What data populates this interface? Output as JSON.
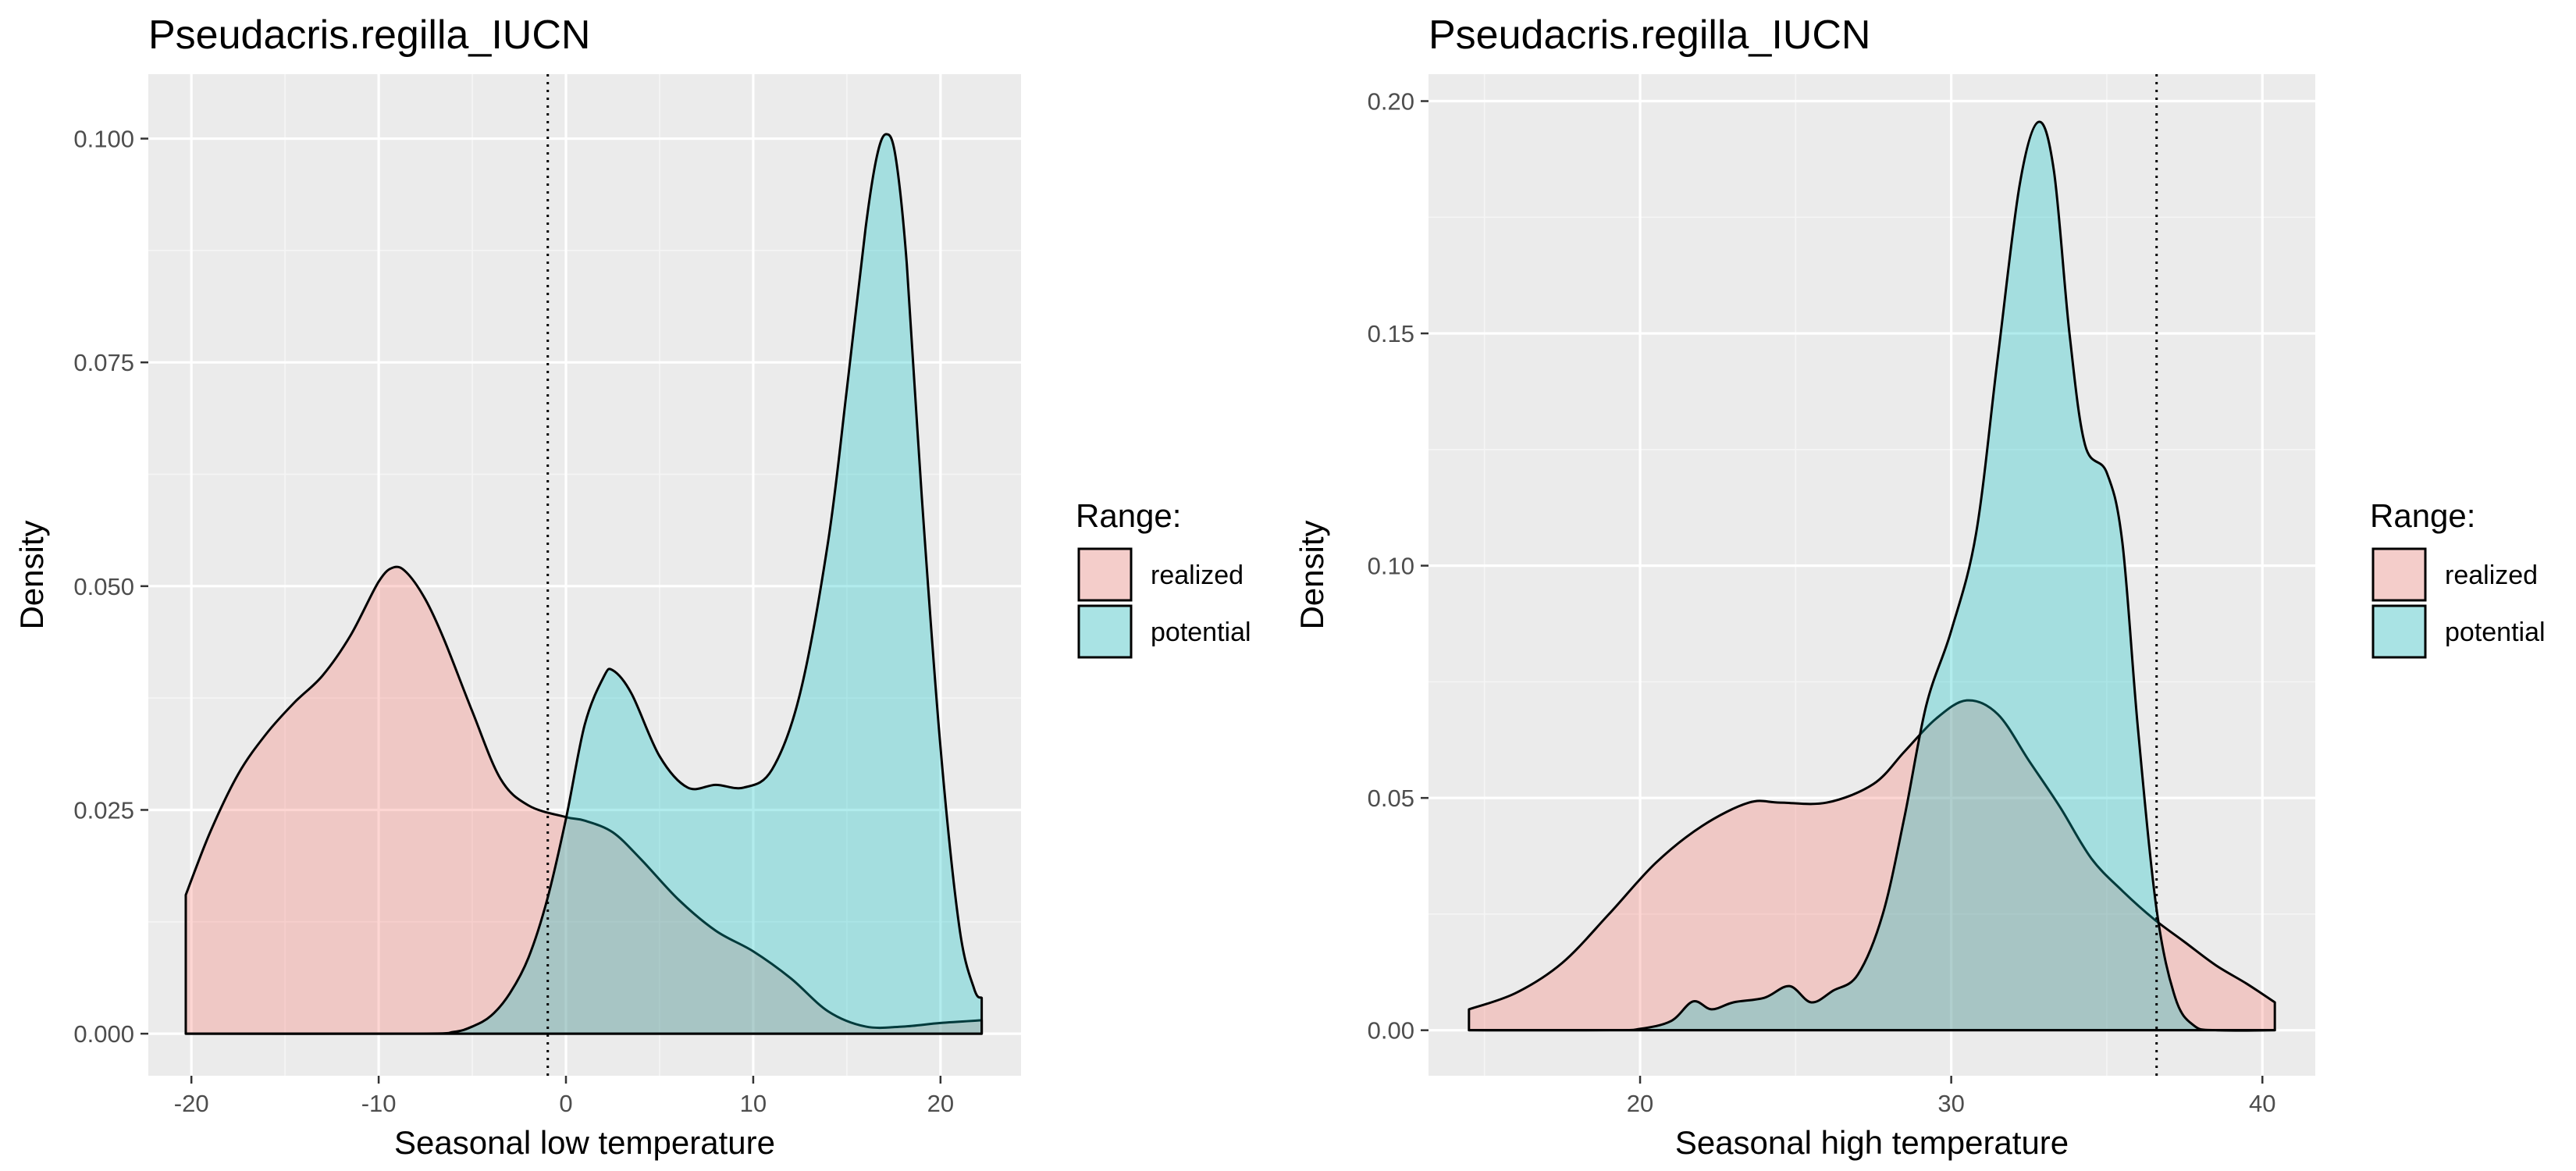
{
  "chart_data": [
    {
      "type": "area",
      "title": "Pseudacris.regilla_IUCN",
      "xlabel": "Seasonal low temperature",
      "ylabel": "Density",
      "xlim": [
        -22.3,
        24.3
      ],
      "ylim": [
        -0.0047,
        0.1072
      ],
      "x_ticks": [
        -20,
        -10,
        0,
        10,
        20
      ],
      "x_tick_labels": [
        "-20",
        "-10",
        "0",
        "10",
        "20"
      ],
      "y_ticks": [
        0.0,
        0.025,
        0.05,
        0.075,
        0.1
      ],
      "y_tick_labels": [
        "0.000",
        "0.025",
        "0.050",
        "0.075",
        "0.100"
      ],
      "vline": -0.97,
      "grid": true,
      "legend": {
        "title": "Range:",
        "placement": "right",
        "entries": [
          "realized",
          "potential"
        ]
      },
      "series": [
        {
          "name": "realized",
          "color": "#F8766D",
          "points": [
            [
              -20.3,
              0.0155
            ],
            [
              -19.0,
              0.0225
            ],
            [
              -17.5,
              0.029
            ],
            [
              -16.0,
              0.0335
            ],
            [
              -14.5,
              0.037
            ],
            [
              -13.0,
              0.04
            ],
            [
              -11.5,
              0.0445
            ],
            [
              -10.0,
              0.0505
            ],
            [
              -9.2,
              0.0521
            ],
            [
              -8.5,
              0.0515
            ],
            [
              -7.5,
              0.0485
            ],
            [
              -6.5,
              0.044
            ],
            [
              -5.0,
              0.036
            ],
            [
              -3.5,
              0.0285
            ],
            [
              -2.0,
              0.0255
            ],
            [
              0.0,
              0.0242
            ],
            [
              1.0,
              0.0238
            ],
            [
              2.5,
              0.0225
            ],
            [
              4.0,
              0.0195
            ],
            [
              6.0,
              0.015
            ],
            [
              8.0,
              0.0115
            ],
            [
              10.0,
              0.0092
            ],
            [
              12.0,
              0.0062
            ],
            [
              14.0,
              0.0025
            ],
            [
              16.0,
              0.0008
            ],
            [
              18.0,
              0.0008
            ],
            [
              20.0,
              0.0012
            ],
            [
              22.2,
              0.0015
            ]
          ]
        },
        {
          "name": "potential",
          "color": "#00BFC4",
          "points": [
            [
              -20.3,
              0.0
            ],
            [
              -8.0,
              0.0
            ],
            [
              -6.0,
              0.0002
            ],
            [
              -5.0,
              0.0008
            ],
            [
              -4.0,
              0.002
            ],
            [
              -3.0,
              0.0045
            ],
            [
              -2.0,
              0.0085
            ],
            [
              -1.0,
              0.015
            ],
            [
              0.0,
              0.024
            ],
            [
              1.0,
              0.0345
            ],
            [
              2.0,
              0.0398
            ],
            [
              2.5,
              0.0406
            ],
            [
              3.5,
              0.038
            ],
            [
              5.0,
              0.031
            ],
            [
              6.5,
              0.0275
            ],
            [
              8.0,
              0.0278
            ],
            [
              9.5,
              0.0275
            ],
            [
              11.0,
              0.0295
            ],
            [
              12.5,
              0.038
            ],
            [
              14.0,
              0.055
            ],
            [
              15.0,
              0.072
            ],
            [
              16.0,
              0.09
            ],
            [
              16.6,
              0.098
            ],
            [
              17.1,
              0.1005
            ],
            [
              17.6,
              0.098
            ],
            [
              18.2,
              0.086
            ],
            [
              19.0,
              0.06
            ],
            [
              20.0,
              0.032
            ],
            [
              21.0,
              0.012
            ],
            [
              21.8,
              0.005
            ],
            [
              22.2,
              0.004
            ]
          ]
        }
      ]
    },
    {
      "type": "area",
      "title": "Pseudacris.regilla_IUCN",
      "xlabel": "Seasonal high temperature",
      "ylabel": "Density",
      "xlim": [
        13.2,
        41.7
      ],
      "ylim": [
        -0.0098,
        0.2058
      ],
      "x_ticks": [
        20,
        30,
        40
      ],
      "x_tick_labels": [
        "20",
        "30",
        "40"
      ],
      "y_ticks": [
        0.0,
        0.05,
        0.1,
        0.15,
        0.2
      ],
      "y_tick_labels": [
        "0.00",
        "0.05",
        "0.10",
        "0.15",
        "0.20"
      ],
      "vline": 36.6,
      "grid": true,
      "legend": {
        "title": "Range:",
        "placement": "right",
        "entries": [
          "realized",
          "potential"
        ]
      },
      "series": [
        {
          "name": "realized",
          "color": "#F8766D",
          "points": [
            [
              14.5,
              0.0045
            ],
            [
              16.0,
              0.008
            ],
            [
              17.5,
              0.0145
            ],
            [
              19.0,
              0.025
            ],
            [
              20.5,
              0.036
            ],
            [
              22.0,
              0.044
            ],
            [
              23.5,
              0.049
            ],
            [
              24.5,
              0.049
            ],
            [
              26.0,
              0.049
            ],
            [
              27.5,
              0.053
            ],
            [
              28.5,
              0.06
            ],
            [
              29.5,
              0.067
            ],
            [
              30.5,
              0.071
            ],
            [
              31.5,
              0.068
            ],
            [
              32.5,
              0.058
            ],
            [
              33.5,
              0.048
            ],
            [
              34.5,
              0.037
            ],
            [
              35.5,
              0.03
            ],
            [
              36.5,
              0.024
            ],
            [
              37.5,
              0.019
            ],
            [
              38.5,
              0.014
            ],
            [
              39.5,
              0.01
            ],
            [
              40.4,
              0.006
            ]
          ]
        },
        {
          "name": "potential",
          "color": "#00BFC4",
          "points": [
            [
              14.5,
              0.0
            ],
            [
              19.0,
              0.0
            ],
            [
              20.0,
              0.0003
            ],
            [
              21.0,
              0.002
            ],
            [
              21.7,
              0.0062
            ],
            [
              22.3,
              0.0045
            ],
            [
              23.0,
              0.006
            ],
            [
              24.0,
              0.007
            ],
            [
              24.8,
              0.0095
            ],
            [
              25.5,
              0.006
            ],
            [
              26.2,
              0.0085
            ],
            [
              27.0,
              0.012
            ],
            [
              27.8,
              0.025
            ],
            [
              28.5,
              0.046
            ],
            [
              29.2,
              0.07
            ],
            [
              30.0,
              0.086
            ],
            [
              30.8,
              0.107
            ],
            [
              31.5,
              0.145
            ],
            [
              32.2,
              0.182
            ],
            [
              32.8,
              0.1955
            ],
            [
              33.3,
              0.185
            ],
            [
              33.8,
              0.15
            ],
            [
              34.3,
              0.126
            ],
            [
              35.0,
              0.12
            ],
            [
              35.5,
              0.105
            ],
            [
              36.0,
              0.065
            ],
            [
              36.6,
              0.026
            ],
            [
              37.2,
              0.007
            ],
            [
              37.8,
              0.001
            ],
            [
              38.5,
              0.0
            ],
            [
              40.4,
              0.0
            ]
          ]
        }
      ]
    }
  ]
}
